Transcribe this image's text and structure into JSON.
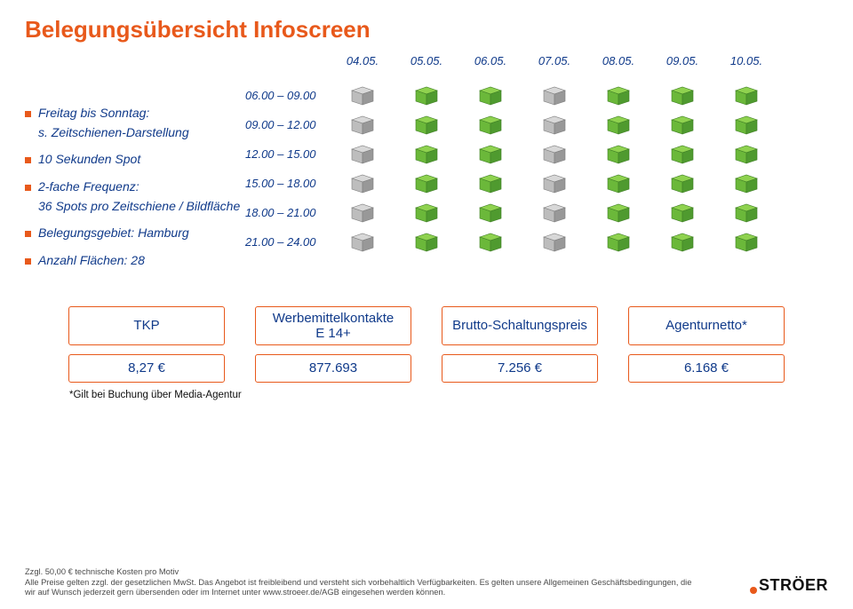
{
  "title": "Belegungsübersicht Infoscreen",
  "bullets": {
    "b1": "Freitag bis Sonntag:",
    "b1sub": "s. Zeitschienen-Darstellung",
    "b2": "10 Sekunden Spot",
    "b3": "2-fache Frequenz:",
    "b3sub": "36 Spots pro Zeitschiene / Bildfläche",
    "b4": "Belegungsgebiet: Hamburg",
    "b5": "Anzahl Flächen: 28"
  },
  "dates": [
    "04.05.",
    "05.05.",
    "06.05.",
    "07.05.",
    "08.05.",
    "09.05.",
    "10.05."
  ],
  "times": [
    "06.00 – 09.00",
    "09.00 – 12.00",
    "12.00 – 15.00",
    "15.00 – 18.00",
    "18.00 – 21.00",
    "21.00 – 24.00"
  ],
  "grid": [
    [
      "grey",
      "green",
      "green",
      "grey",
      "green",
      "green",
      "green"
    ],
    [
      "grey",
      "green",
      "green",
      "grey",
      "green",
      "green",
      "green"
    ],
    [
      "grey",
      "green",
      "green",
      "grey",
      "green",
      "green",
      "green"
    ],
    [
      "grey",
      "green",
      "green",
      "grey",
      "green",
      "green",
      "green"
    ],
    [
      "grey",
      "green",
      "green",
      "grey",
      "green",
      "green",
      "green"
    ],
    [
      "grey",
      "green",
      "green",
      "grey",
      "green",
      "green",
      "green"
    ]
  ],
  "cube_colors": {
    "green": {
      "top": "#8fd24f",
      "front": "#6bb83a",
      "side": "#4f9a2f",
      "edge": "#3f7f25"
    },
    "grey": {
      "top": "#d8d8d8",
      "front": "#bdbdbd",
      "side": "#989898",
      "edge": "#7d7d7d"
    }
  },
  "cards": [
    {
      "header": "TKP",
      "value": "8,27 €"
    },
    {
      "header": "Werbemittelkontakte\nE 14+",
      "value": "877.693"
    },
    {
      "header": "Brutto-Schaltungspreis",
      "value": "7.256 €"
    },
    {
      "header": "Agenturnetto*",
      "value": "6.168 €"
    }
  ],
  "footnote1": "*Gilt bei Buchung über Media-Agentur",
  "footnote2": "Zzgl. 50,00 € technische Kosten pro Motiv\nAlle Preise gelten zzgl. der gesetzlichen MwSt. Das Angebot ist freibleibend und versteht sich vorbehaltlich Verfügbarkeiten. Es gelten unsere Allgemeinen Geschäftsbedingungen, die wir auf Wunsch jederzeit gern übersenden oder im Internet unter www.stroeer.de/AGB eingesehen werden können.",
  "logo_text": "STRÖER",
  "colors": {
    "accent": "#e8591b",
    "text_blue": "#103a8a",
    "card_border": "#e8591b"
  }
}
